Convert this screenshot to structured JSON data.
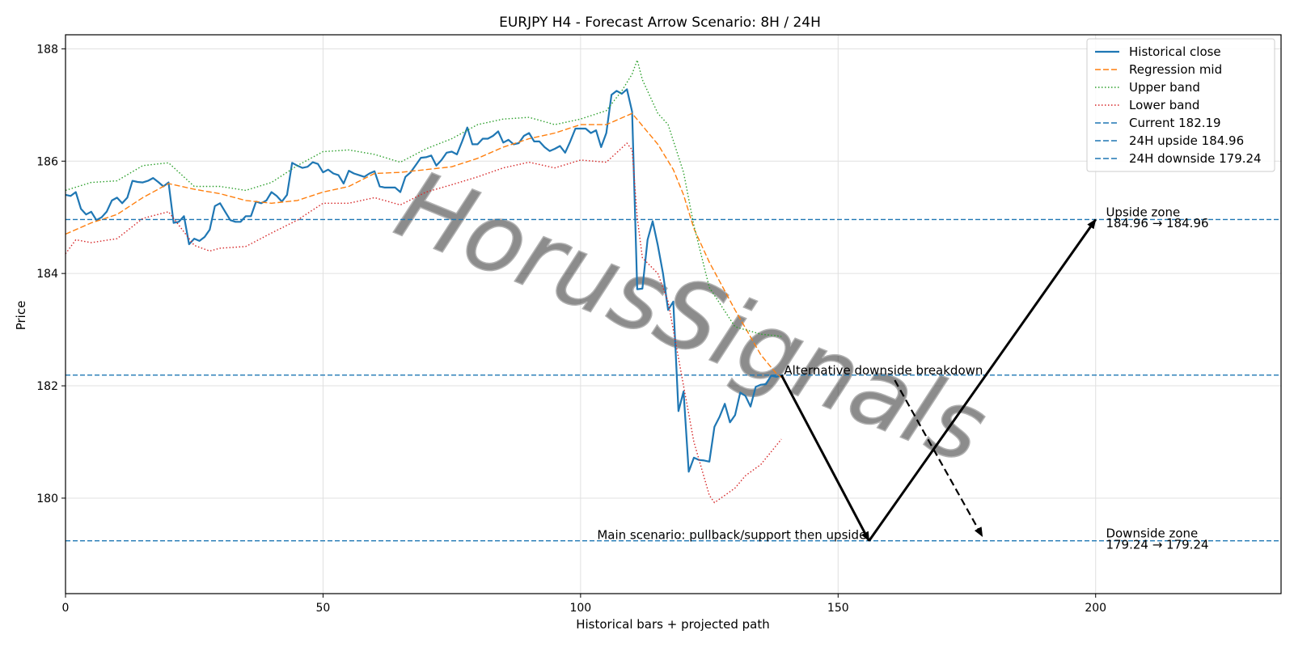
{
  "chart_data": {
    "type": "line",
    "title": "EURJPY H4 - Forecast Arrow Scenario: 8H / 24H",
    "xlabel": "Historical bars + projected path",
    "ylabel": "Price",
    "xlim": [
      0,
      236
    ],
    "ylim": [
      178.3,
      188.25
    ],
    "xticks": [
      0,
      50,
      100,
      150,
      200
    ],
    "yticks": [
      180,
      182,
      184,
      186,
      188
    ],
    "grid": true,
    "legend_position": "top-right",
    "watermark": "HorusSignals",
    "colors": {
      "historical": "#1f77b4",
      "regression": "#ff7f0e",
      "upper": "#2ca02c",
      "lower": "#d62728",
      "hline": "#1f77b4",
      "arrow": "#000000"
    },
    "series": [
      {
        "name": "Historical close",
        "style": "solid",
        "x": [
          0,
          1,
          2,
          3,
          4,
          5,
          6,
          7,
          8,
          9,
          10,
          11,
          12,
          13,
          14,
          15,
          16,
          17,
          18,
          19,
          20,
          21,
          22,
          23,
          24,
          25,
          26,
          27,
          28,
          29,
          30,
          31,
          32,
          33,
          34,
          35,
          36,
          37,
          38,
          39,
          40,
          41,
          42,
          43,
          44,
          45,
          46,
          47,
          48,
          49,
          50,
          51,
          52,
          53,
          54,
          55,
          56,
          57,
          58,
          59,
          60,
          61,
          62,
          63,
          64,
          65,
          66,
          67,
          68,
          69,
          70,
          71,
          72,
          73,
          74,
          75,
          76,
          77,
          78,
          79,
          80,
          81,
          82,
          83,
          84,
          85,
          86,
          87,
          88,
          89,
          90,
          91,
          92,
          93,
          94,
          95,
          96,
          97,
          98,
          99,
          100,
          101,
          102,
          103,
          104,
          105,
          106,
          107,
          108,
          109,
          110,
          111,
          112,
          113,
          114,
          115,
          116,
          117,
          118,
          119,
          120,
          121,
          122,
          123,
          124,
          125,
          126,
          127,
          128,
          129,
          130,
          131,
          132,
          133,
          134,
          135,
          136,
          137,
          138,
          139
        ],
        "y": [
          185.4,
          185.38,
          185.45,
          185.15,
          185.05,
          185.1,
          184.95,
          185.0,
          185.1,
          185.3,
          185.35,
          185.25,
          185.35,
          185.65,
          185.63,
          185.62,
          185.65,
          185.7,
          185.63,
          185.55,
          185.62,
          184.9,
          184.92,
          185.02,
          184.52,
          184.62,
          184.58,
          184.65,
          184.78,
          185.2,
          185.25,
          185.1,
          184.95,
          184.92,
          184.92,
          185.02,
          185.02,
          185.28,
          185.25,
          185.3,
          185.45,
          185.38,
          185.28,
          185.4,
          185.97,
          185.92,
          185.88,
          185.9,
          185.98,
          185.95,
          185.8,
          185.85,
          185.78,
          185.75,
          185.6,
          185.83,
          185.78,
          185.75,
          185.72,
          185.78,
          185.82,
          185.55,
          185.53,
          185.53,
          185.53,
          185.45,
          185.72,
          185.8,
          185.93,
          186.06,
          186.07,
          186.1,
          185.92,
          186.02,
          186.15,
          186.17,
          186.12,
          186.35,
          186.6,
          186.3,
          186.3,
          186.4,
          186.4,
          186.45,
          186.53,
          186.33,
          186.38,
          186.3,
          186.32,
          186.45,
          186.5,
          186.35,
          186.35,
          186.25,
          186.18,
          186.22,
          186.27,
          186.15,
          186.35,
          186.58,
          186.58,
          186.58,
          186.5,
          186.55,
          186.25,
          186.5,
          187.18,
          187.25,
          187.2,
          187.28,
          186.88,
          183.72,
          183.73,
          184.6,
          184.93,
          184.5,
          184.0,
          183.35,
          183.5,
          181.55,
          181.9,
          180.47,
          180.72,
          180.68,
          180.67,
          180.65,
          181.27,
          181.45,
          181.68,
          181.35,
          181.48,
          181.88,
          181.82,
          181.63,
          181.98,
          182.02,
          182.03,
          182.18,
          182.16,
          182.19
        ]
      },
      {
        "name": "Regression mid",
        "style": "dashed",
        "x": [
          0,
          5,
          10,
          15,
          20,
          25,
          30,
          35,
          40,
          45,
          50,
          55,
          60,
          65,
          70,
          75,
          80,
          85,
          90,
          95,
          100,
          105,
          110,
          115,
          118,
          120,
          122,
          125,
          130,
          135,
          138,
          139
        ],
        "y": [
          184.7,
          184.9,
          185.05,
          185.35,
          185.6,
          185.5,
          185.42,
          185.3,
          185.25,
          185.3,
          185.45,
          185.55,
          185.78,
          185.8,
          185.85,
          185.9,
          186.05,
          186.25,
          186.4,
          186.5,
          186.65,
          186.65,
          186.85,
          186.3,
          185.85,
          185.4,
          184.8,
          184.2,
          183.35,
          182.55,
          182.22,
          182.15
        ]
      },
      {
        "name": "Upper band",
        "style": "dotted",
        "x": [
          0,
          5,
          10,
          15,
          20,
          25,
          30,
          35,
          40,
          45,
          50,
          55,
          60,
          65,
          70,
          75,
          80,
          85,
          90,
          95,
          100,
          105,
          108,
          110,
          111,
          112,
          115,
          117,
          120,
          122,
          125,
          130,
          135,
          139
        ],
        "y": [
          185.48,
          185.62,
          185.65,
          185.92,
          185.97,
          185.55,
          185.55,
          185.48,
          185.62,
          185.92,
          186.17,
          186.2,
          186.12,
          185.98,
          186.22,
          186.4,
          186.65,
          186.75,
          186.78,
          186.65,
          186.75,
          186.9,
          187.25,
          187.55,
          187.8,
          187.45,
          186.85,
          186.65,
          185.8,
          184.85,
          183.75,
          183.05,
          182.92,
          182.88
        ]
      },
      {
        "name": "Lower band",
        "style": "dotted",
        "x": [
          0,
          2,
          5,
          10,
          15,
          20,
          25,
          28,
          30,
          35,
          40,
          45,
          50,
          55,
          60,
          65,
          70,
          75,
          80,
          85,
          90,
          95,
          100,
          105,
          109,
          110,
          111,
          112,
          115,
          117,
          120,
          122,
          125,
          126,
          128,
          130,
          132,
          135,
          139
        ],
        "y": [
          184.35,
          184.6,
          184.55,
          184.62,
          184.98,
          185.1,
          184.5,
          184.4,
          184.45,
          184.48,
          184.72,
          184.95,
          185.25,
          185.25,
          185.35,
          185.22,
          185.45,
          185.58,
          185.72,
          185.88,
          185.98,
          185.88,
          186.02,
          185.98,
          186.32,
          186.2,
          185.0,
          184.28,
          184.0,
          183.5,
          182.0,
          181.0,
          180.05,
          179.92,
          180.05,
          180.18,
          180.4,
          180.6,
          181.05
        ]
      }
    ],
    "hlines": [
      {
        "name": "Current 182.19",
        "y": 182.19
      },
      {
        "name": "24H upside 184.96",
        "y": 184.96
      },
      {
        "name": "24H downside 179.24",
        "y": 179.24
      }
    ],
    "arrows": [
      {
        "style": "solid",
        "from": [
          139,
          182.19
        ],
        "to": [
          156,
          179.24
        ]
      },
      {
        "style": "solid",
        "from": [
          156,
          179.24
        ],
        "to": [
          200,
          184.96
        ]
      },
      {
        "style": "dashed",
        "from": [
          161,
          182.1
        ],
        "to": [
          178,
          179.32
        ]
      }
    ],
    "annotations": [
      {
        "id": "alt",
        "text": "Alternative downside breakdown",
        "x": 139.5,
        "y": 182.2,
        "anchor": "start"
      },
      {
        "id": "main",
        "text": "Main scenario: pullback/support then upside",
        "x": 155.5,
        "y": 179.27,
        "anchor": "end"
      },
      {
        "id": "upzone1",
        "text": "Upside zone",
        "x": 202,
        "y": 185.02,
        "anchor": "start"
      },
      {
        "id": "upzone2",
        "text": "184.96 → 184.96",
        "x": 202,
        "y": 184.82,
        "anchor": "start"
      },
      {
        "id": "downzone1",
        "text": "Downside zone",
        "x": 202,
        "y": 179.3,
        "anchor": "start"
      },
      {
        "id": "downzone2",
        "text": "179.24 → 179.24",
        "x": 202,
        "y": 179.1,
        "anchor": "start"
      }
    ]
  }
}
